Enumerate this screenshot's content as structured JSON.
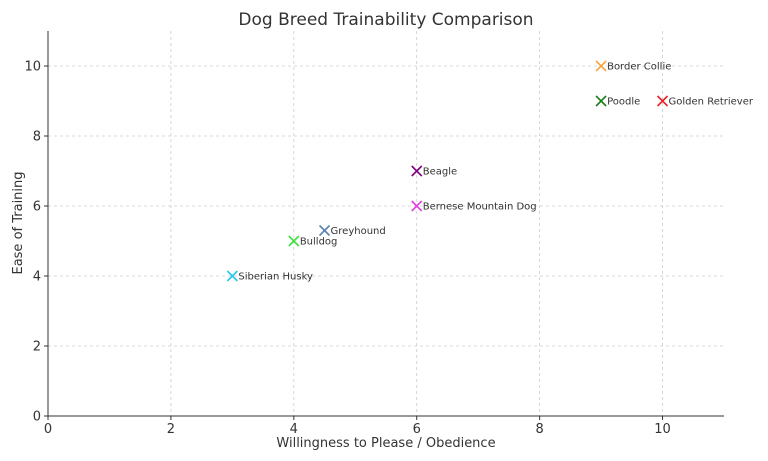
{
  "chart_data": {
    "type": "scatter",
    "title": "Dog Breed Trainability Comparison",
    "xlabel": "Willingness to Please / Obedience",
    "ylabel": "Ease of Training",
    "xlim": [
      0,
      11
    ],
    "ylim": [
      0,
      11
    ],
    "xticks": [
      0,
      2,
      4,
      6,
      8,
      10
    ],
    "yticks": [
      0,
      2,
      4,
      6,
      8,
      10
    ],
    "grid": true,
    "marker": "x",
    "points": [
      {
        "label": "Border Collie",
        "x": 9,
        "y": 10,
        "color": "#f5a442"
      },
      {
        "label": "Poodle",
        "x": 9,
        "y": 9,
        "color": "#1a7f1a"
      },
      {
        "label": "Golden Retriever",
        "x": 10,
        "y": 9,
        "color": "#e8242c"
      },
      {
        "label": "Beagle",
        "x": 6,
        "y": 7,
        "color": "#800080"
      },
      {
        "label": "Bernese Mountain Dog",
        "x": 6,
        "y": 6,
        "color": "#e040e0"
      },
      {
        "label": "Greyhound",
        "x": 4.5,
        "y": 5.3,
        "color": "#5b84b1"
      },
      {
        "label": "Bulldog",
        "x": 4,
        "y": 5,
        "color": "#3ee03e"
      },
      {
        "label": "Siberian Husky",
        "x": 3,
        "y": 4,
        "color": "#28c8e8"
      }
    ]
  }
}
